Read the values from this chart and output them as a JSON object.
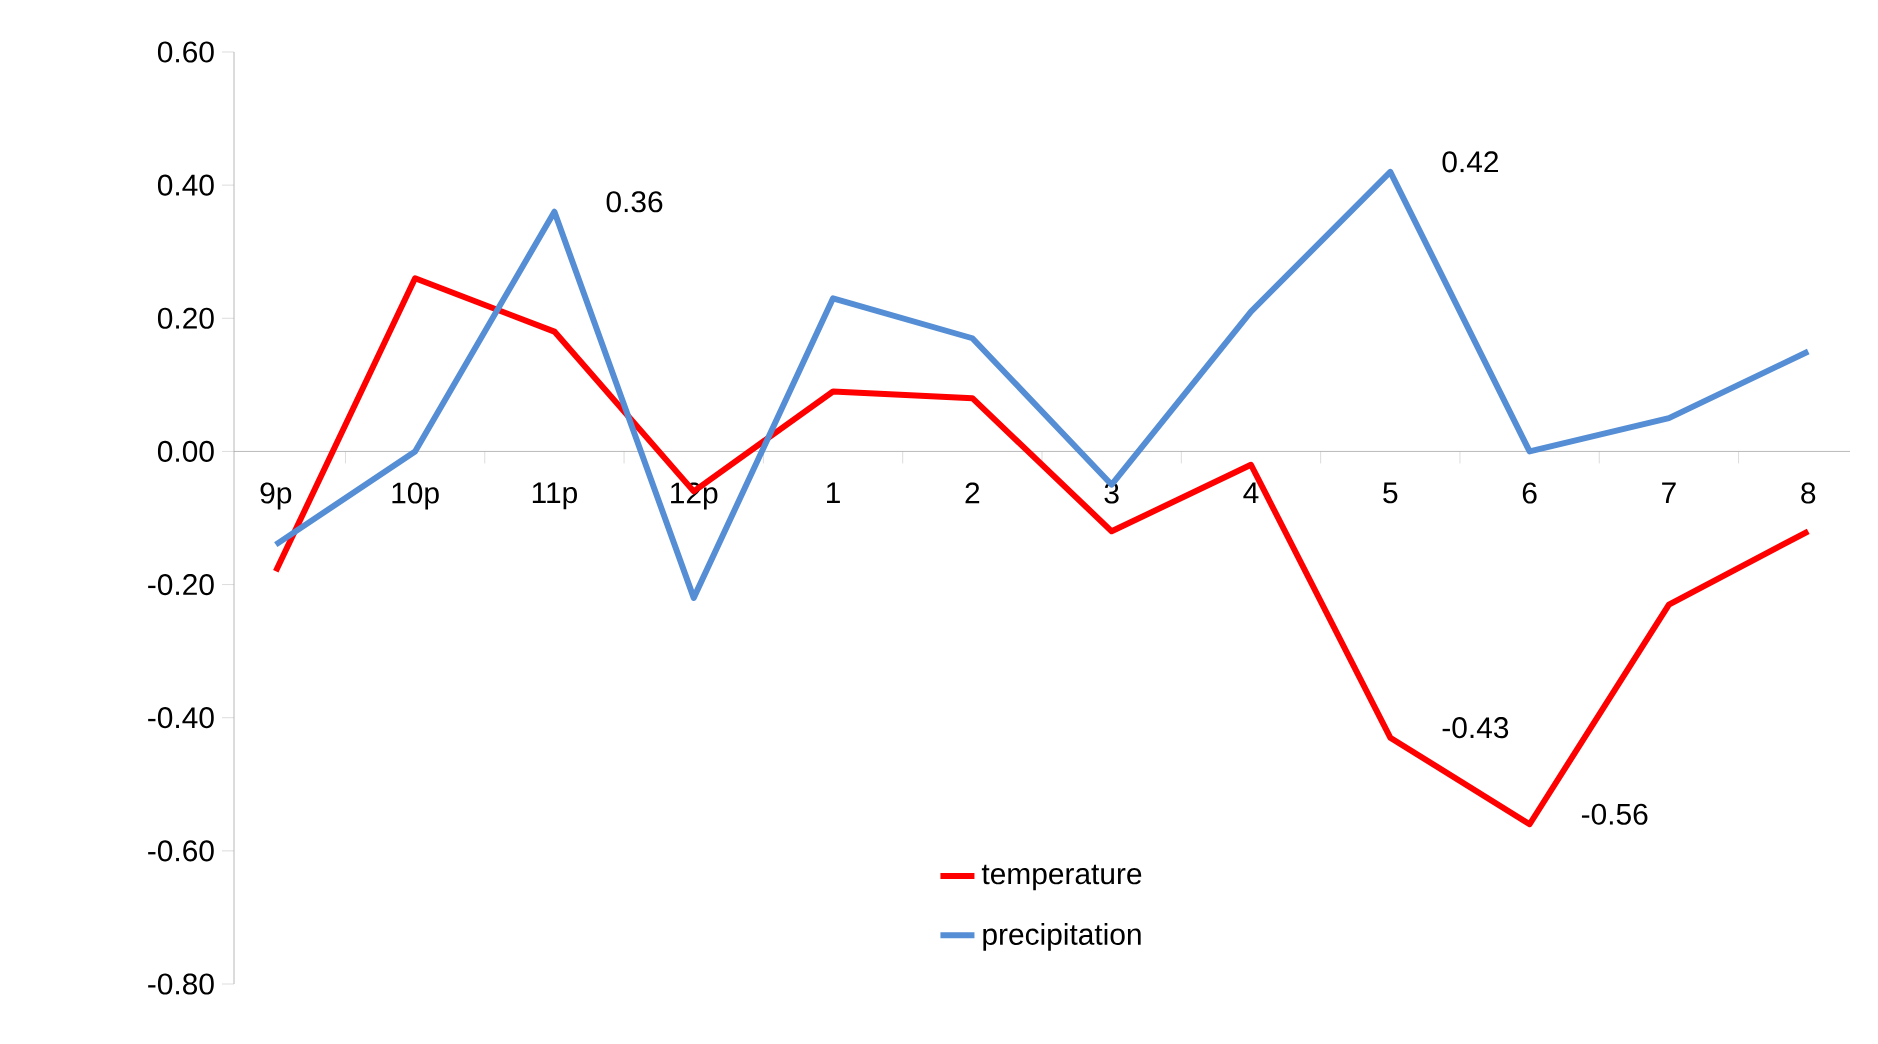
{
  "chart_data": {
    "type": "line",
    "categories": [
      "9p",
      "10p",
      "11p",
      "12p",
      "1",
      "2",
      "3",
      "4",
      "5",
      "6",
      "7",
      "8"
    ],
    "series": [
      {
        "name": "temperature",
        "color": "#ff0000",
        "values": [
          -0.18,
          0.26,
          0.18,
          -0.06,
          0.09,
          0.08,
          -0.12,
          -0.02,
          -0.43,
          -0.56,
          -0.23,
          -0.12
        ],
        "value_labels": [
          null,
          null,
          null,
          null,
          null,
          null,
          null,
          null,
          "-0.43",
          "-0.56",
          null,
          null
        ]
      },
      {
        "name": "precipitation",
        "color": "#558ed5",
        "values": [
          -0.14,
          0.0,
          0.36,
          -0.22,
          0.23,
          0.17,
          -0.05,
          0.21,
          0.42,
          0.0,
          0.05,
          0.15
        ],
        "value_labels": [
          null,
          null,
          "0.36",
          null,
          null,
          null,
          null,
          null,
          "0.42",
          null,
          null,
          null
        ]
      }
    ],
    "ylim": [
      -0.8,
      0.6
    ],
    "yticks": [
      {
        "value": -0.8,
        "label": "-0.80"
      },
      {
        "value": -0.6,
        "label": "-0.60"
      },
      {
        "value": -0.4,
        "label": "-0.40"
      },
      {
        "value": -0.2,
        "label": "-0.20"
      },
      {
        "value": 0,
        "label": "0.00"
      },
      {
        "value": 0.2,
        "label": "0.20"
      },
      {
        "value": 0.4,
        "label": "0.40"
      },
      {
        "value": 0.6,
        "label": "0.60"
      }
    ],
    "legend": "bottom",
    "grid": false,
    "marker": "none",
    "line_style": "solid"
  }
}
